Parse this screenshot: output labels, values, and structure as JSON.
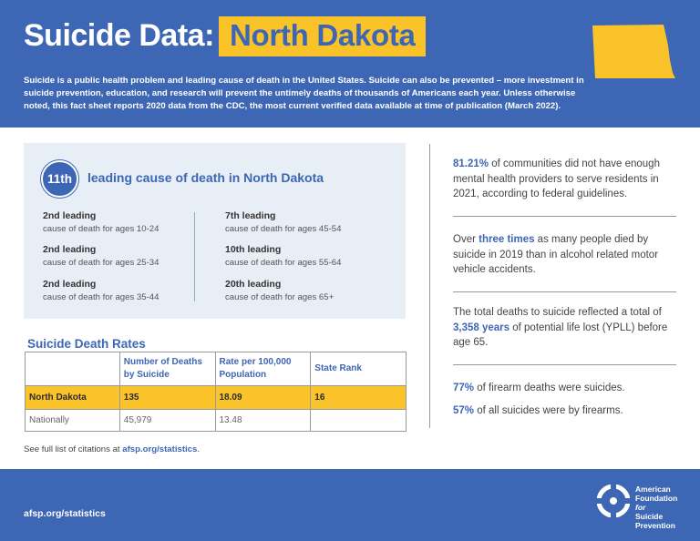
{
  "header": {
    "title": "Suicide Data:",
    "state": "North Dakota",
    "intro": "Suicide is a public health problem and leading cause of death in the United States. Suicide can also be prevented – more investment in suicide prevention, education, and research will prevent the untimely deaths of thousands of Americans each year. Unless otherwise noted, this fact sheet reports 2020 data from the CDC, the most current verified data available at time of publication (March 2022)."
  },
  "leading_cause": {
    "rank": "11th",
    "label": "leading cause of death in North Dakota",
    "items": [
      {
        "rank": "2nd leading",
        "desc": "cause of death for ages 10-24"
      },
      {
        "rank": "2nd leading",
        "desc": "cause of death for ages 25-34"
      },
      {
        "rank": "2nd leading",
        "desc": "cause of death for ages 35-44"
      },
      {
        "rank": "7th leading",
        "desc": "cause of death for ages 45-54"
      },
      {
        "rank": "10th leading",
        "desc": "cause of death for ages 55-64"
      },
      {
        "rank": "20th leading",
        "desc": "cause of death for ages 65+"
      }
    ]
  },
  "table": {
    "title": "Suicide Death Rates",
    "headers": [
      "",
      "Number of Deaths by Suicide",
      "Rate per 100,000 Population",
      "State Rank"
    ],
    "rows": [
      [
        "North Dakota",
        "135",
        "18.09",
        "16"
      ],
      [
        "Nationally",
        "45,979",
        "13.48",
        ""
      ]
    ]
  },
  "citation": {
    "prefix": "See full list of citations at ",
    "link": "afsp.org/statistics",
    "suffix": "."
  },
  "stats": [
    {
      "pre": "",
      "em": "81.21%",
      "post": " of communities did not have enough mental health providers to serve residents in 2021, according to federal guidelines."
    },
    {
      "pre": "Over ",
      "em": "three times",
      "post": " as many people died by suicide in 2019 than in alcohol related motor vehicle accidents."
    },
    {
      "pre": "The total deaths to suicide reflected a total of ",
      "em": "3,358 years",
      "post": " of potential life lost (YPLL) before age 65."
    },
    {
      "pre": "",
      "em": "77%",
      "post": " of firearm deaths were suicides."
    },
    {
      "pre": "",
      "em": "57%",
      "post": " of all suicides were by firearms."
    }
  ],
  "footer": {
    "url": "afsp.org/statistics",
    "org_line1": "American",
    "org_line2": "Foundation",
    "org_line3": "for",
    "org_line4": "Suicide",
    "org_line5": "Prevention"
  },
  "colors": {
    "brand_blue": "#3d66b5",
    "highlight_yellow": "#fbc32a",
    "panel_bg": "#e8eef6"
  }
}
